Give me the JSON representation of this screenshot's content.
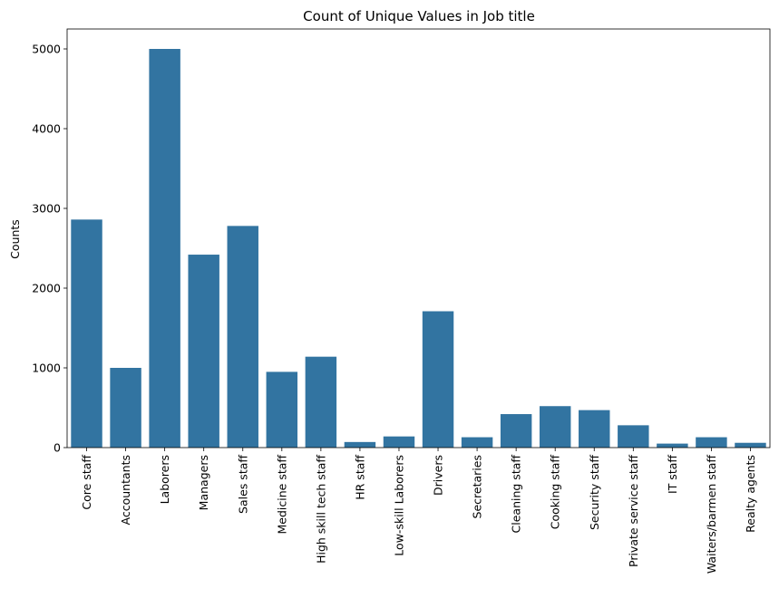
{
  "chart_data": {
    "type": "bar",
    "title": "Count of Unique Values in Job title",
    "xlabel": "",
    "ylabel": "Counts",
    "categories": [
      "Core staff",
      "Accountants",
      "Laborers",
      "Managers",
      "Sales staff",
      "Medicine staff",
      "High skill tech staff",
      "HR staff",
      "Low-skill Laborers",
      "Drivers",
      "Secretaries",
      "Cleaning staff",
      "Cooking staff",
      "Security staff",
      "Private service staff",
      "IT staff",
      "Waiters/barmen staff",
      "Realty agents"
    ],
    "values": [
      2860,
      1000,
      5000,
      2420,
      2780,
      950,
      1140,
      70,
      140,
      1710,
      130,
      420,
      520,
      470,
      280,
      50,
      130,
      60
    ],
    "ylim": [
      0,
      5250
    ],
    "yticks": [
      0,
      1000,
      2000,
      3000,
      4000,
      5000
    ],
    "bar_color": "#3274a1",
    "grid": false,
    "legend": "none"
  }
}
